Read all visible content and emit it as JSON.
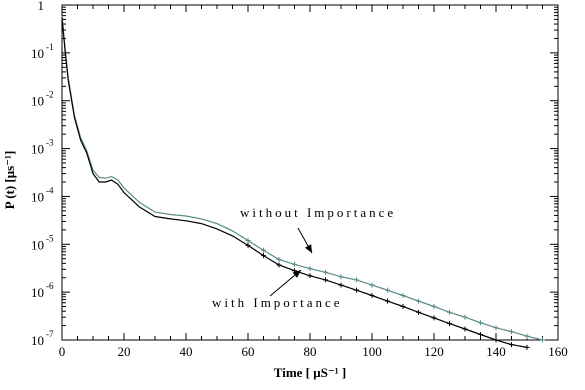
{
  "chart_data": {
    "type": "line",
    "title": "",
    "xlabel": "Time [ μS⁻¹ ]",
    "ylabel": "P (t) [μs⁻¹]",
    "xlim": [
      0,
      160
    ],
    "ylim": [
      1e-07,
      1
    ],
    "yscale": "log",
    "x_ticks": [
      {
        "value": 0,
        "label": "0"
      },
      {
        "value": 20,
        "label": "20"
      },
      {
        "value": 40,
        "label": "40"
      },
      {
        "value": 60,
        "label": "60"
      },
      {
        "value": 80,
        "label": "80"
      },
      {
        "value": 100,
        "label": "100"
      },
      {
        "value": 120,
        "label": "120"
      },
      {
        "value": 140,
        "label": "140"
      },
      {
        "value": 160,
        "label": "160"
      }
    ],
    "y_ticks": [
      {
        "value": 1,
        "base": "1",
        "exp": ""
      },
      {
        "value": 0.1,
        "base": "10",
        "exp": "-1"
      },
      {
        "value": 0.01,
        "base": "10",
        "exp": "-2"
      },
      {
        "value": 0.001,
        "base": "10",
        "exp": "-3"
      },
      {
        "value": 0.0001,
        "base": "10",
        "exp": "-4"
      },
      {
        "value": 1e-05,
        "base": "10",
        "exp": "-5"
      },
      {
        "value": 1e-06,
        "base": "10",
        "exp": "-6"
      },
      {
        "value": 1e-07,
        "base": "10",
        "exp": "-7"
      }
    ],
    "grid": false,
    "series": [
      {
        "name": "without Importance",
        "color": "#5a8a8a",
        "marker": "+",
        "x": [
          0,
          1,
          2,
          4,
          6,
          8,
          10,
          12,
          14,
          16,
          18,
          20,
          25,
          30,
          35,
          40,
          45,
          50,
          55,
          60,
          65,
          70,
          75,
          80,
          85,
          90,
          95,
          100,
          105,
          110,
          115,
          120,
          125,
          130,
          135,
          140,
          145,
          150,
          155
        ],
        "y": [
          0.6,
          0.12,
          0.03,
          0.005,
          0.0017,
          0.0009,
          0.00035,
          0.00025,
          0.00024,
          0.00026,
          0.00022,
          0.00015,
          7.5e-05,
          4.7e-05,
          4.2e-05,
          3.9e-05,
          3.4e-05,
          2.7e-05,
          1.9e-05,
          1.2e-05,
          7.5e-06,
          4.8e-06,
          3.8e-06,
          3.1e-06,
          2.6e-06,
          2.1e-06,
          1.8e-06,
          1.4e-06,
          1.1e-06,
          8.5e-07,
          6.5e-07,
          5e-07,
          3.8e-07,
          3e-07,
          2.3e-07,
          1.8e-07,
          1.5e-07,
          1.2e-07,
          1e-07
        ]
      },
      {
        "name": "with Importance",
        "color": "#000000",
        "marker": "+",
        "x": [
          0,
          1,
          2,
          4,
          6,
          8,
          10,
          12,
          14,
          16,
          18,
          20,
          25,
          30,
          35,
          40,
          45,
          50,
          55,
          60,
          65,
          70,
          75,
          80,
          85,
          90,
          95,
          100,
          105,
          110,
          115,
          120,
          125,
          130,
          135,
          140,
          145,
          150
        ],
        "y": [
          0.55,
          0.11,
          0.027,
          0.0045,
          0.0015,
          0.0008,
          0.0003,
          0.0002,
          0.0002,
          0.00022,
          0.00018,
          0.00012,
          6e-05,
          3.8e-05,
          3.4e-05,
          3.1e-05,
          2.7e-05,
          2.1e-05,
          1.5e-05,
          9.5e-06,
          5.8e-06,
          3.7e-06,
          2.8e-06,
          2.2e-06,
          1.8e-06,
          1.4e-06,
          1.1e-06,
          8.5e-07,
          6.5e-07,
          5e-07,
          3.8e-07,
          2.9e-07,
          2.2e-07,
          1.7e-07,
          1.3e-07,
          1e-07,
          8e-08,
          7e-08
        ]
      }
    ],
    "annotations": [
      {
        "text": "without Importance",
        "series": "without Importance",
        "arrow_to_x": 80,
        "arrow_to_y": 3.1e-06
      },
      {
        "text": "with Importance",
        "series": "with Importance",
        "arrow_to_x": 78,
        "arrow_to_y": 2.2e-06
      }
    ]
  }
}
